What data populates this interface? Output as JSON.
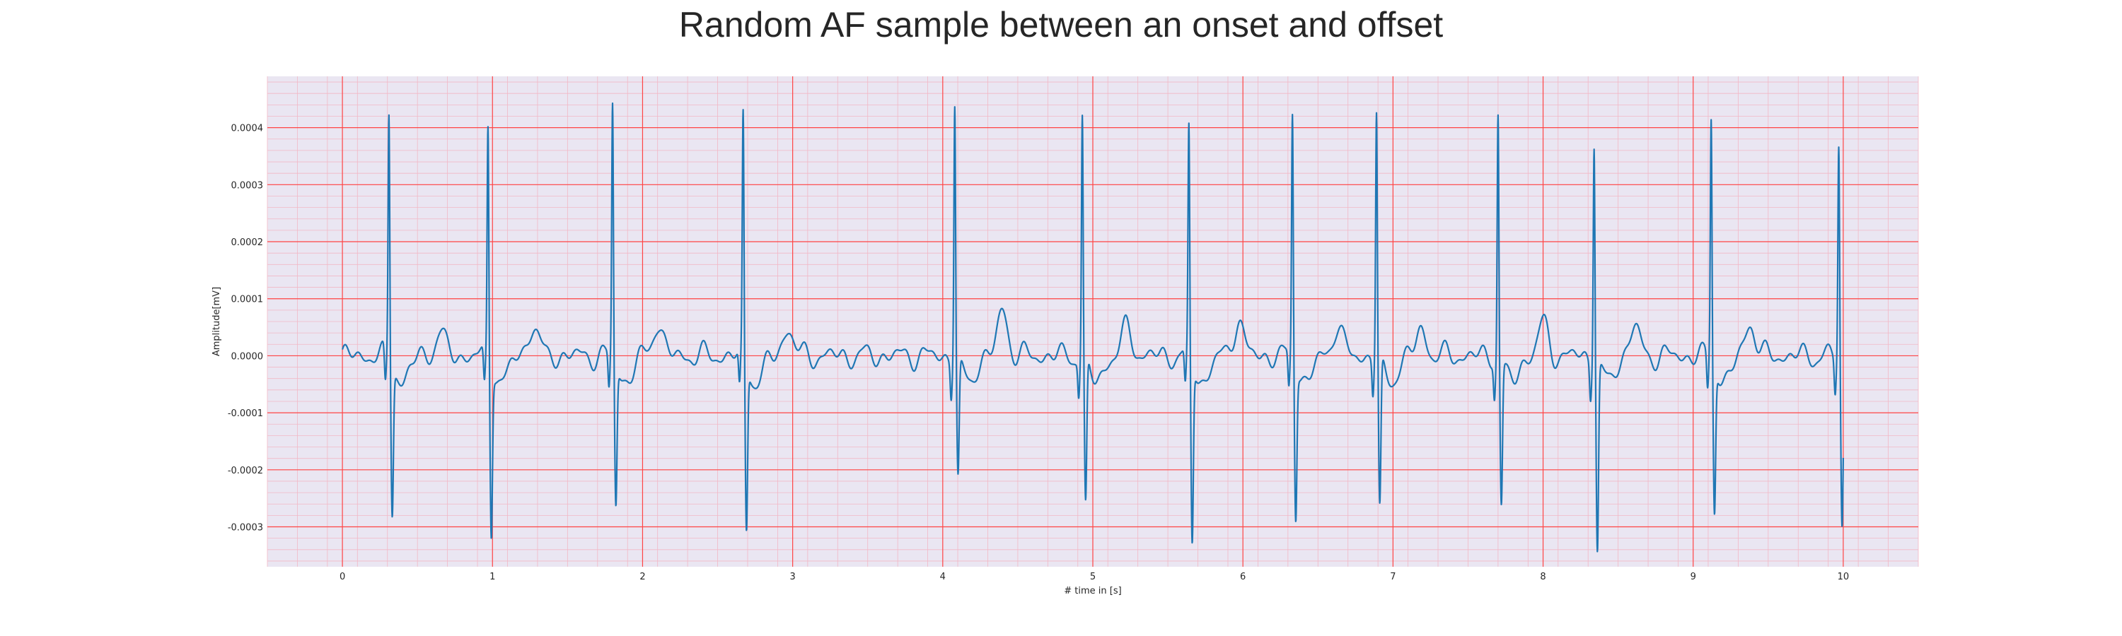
{
  "chart_data": {
    "type": "line",
    "title": "Random AF sample between an onset and offset",
    "xlabel": "# time in [s]",
    "ylabel": "Amplitude[mV]",
    "xlim": [
      -0.5,
      10.5
    ],
    "ylim": [
      -0.00037,
      0.00049
    ],
    "x_ticks": [
      0,
      1,
      2,
      3,
      4,
      5,
      6,
      7,
      8,
      9,
      10
    ],
    "x_tick_labels": [
      "0",
      "1",
      "2",
      "3",
      "4",
      "5",
      "6",
      "7",
      "8",
      "9",
      "10"
    ],
    "y_ticks": [
      -0.0003,
      -0.0002,
      -0.0001,
      0.0,
      0.0001,
      0.0002,
      0.0003,
      0.0004
    ],
    "y_tick_labels": [
      "-0.0003",
      "-0.0002",
      "-0.0001",
      "0.0000",
      "0.0001",
      "0.0002",
      "0.0003",
      "0.0004"
    ],
    "grid": true,
    "major_grid_color": "#ff4444",
    "minor_grid_color": "#f2b8c6",
    "background_color": "#eae6f2",
    "line_color": "#1f77b4",
    "series": [
      {
        "name": "",
        "beats": [
          {
            "t": 0.31,
            "r": 0.000435,
            "s": -0.000255
          },
          {
            "t": 0.97,
            "r": 0.00041,
            "s": -0.000285
          },
          {
            "t": 1.8,
            "r": 0.000448,
            "s": -0.000245
          },
          {
            "t": 2.67,
            "r": 0.000425,
            "s": -0.00029
          },
          {
            "t": 4.08,
            "r": 0.000455,
            "s": -0.000205
          },
          {
            "t": 4.93,
            "r": 0.000428,
            "s": -0.000258
          },
          {
            "t": 5.64,
            "r": 0.0004,
            "s": -0.000315
          },
          {
            "t": 6.33,
            "r": 0.000436,
            "s": -0.000258
          },
          {
            "t": 6.89,
            "r": 0.000438,
            "s": -0.000262
          },
          {
            "t": 7.7,
            "r": 0.000438,
            "s": -0.000248
          },
          {
            "t": 8.34,
            "r": 0.000393,
            "s": -0.000328
          },
          {
            "t": 9.12,
            "r": 0.000428,
            "s": -0.000252
          },
          {
            "t": 9.97,
            "r": 0.000378,
            "s": -0.00029
          }
        ],
        "t_waves": [
          {
            "t": 0.65,
            "a": 4e-05
          },
          {
            "t": 1.27,
            "a": 5.5e-05
          },
          {
            "t": 2.1,
            "a": 6e-05
          },
          {
            "t": 2.97,
            "a": 5e-05
          },
          {
            "t": 4.4,
            "a": 8e-05
          },
          {
            "t": 5.23,
            "a": 5e-05
          },
          {
            "t": 5.97,
            "a": 6.5e-05
          },
          {
            "t": 6.63,
            "a": 5.5e-05
          },
          {
            "t": 7.19,
            "a": 4.5e-05
          },
          {
            "t": 8.0,
            "a": 5.5e-05
          },
          {
            "t": 8.61,
            "a": 5e-05
          },
          {
            "t": 9.38,
            "a": 6e-05
          }
        ],
        "t_start": 0.0,
        "t_end": 10.0
      }
    ]
  }
}
